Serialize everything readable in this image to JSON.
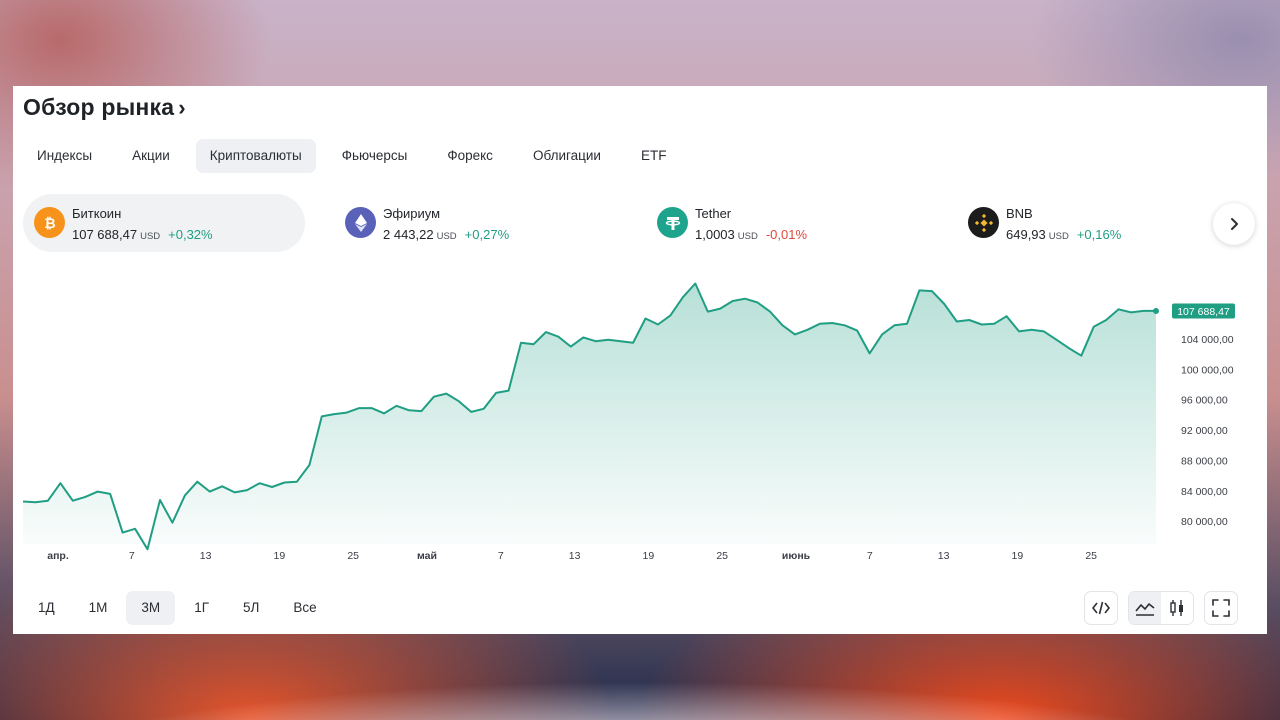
{
  "header": {
    "title": "Обзор рынка",
    "chevron": "›"
  },
  "tabs": [
    {
      "label": "Индексы",
      "active": false
    },
    {
      "label": "Акции",
      "active": false
    },
    {
      "label": "Криптовалюты",
      "active": true
    },
    {
      "label": "Фьючерсы",
      "active": false
    },
    {
      "label": "Форекс",
      "active": false
    },
    {
      "label": "Облигации",
      "active": false
    },
    {
      "label": "ETF",
      "active": false
    }
  ],
  "tickers": [
    {
      "name": "Биткоин",
      "price": "107 688,47",
      "currency": "USD",
      "change": "+0,32%",
      "direction": "up",
      "icon": "bitcoin-icon",
      "color": "#f7931a",
      "active": true
    },
    {
      "name": "Эфириум",
      "price": "2 443,22",
      "currency": "USD",
      "change": "+0,27%",
      "direction": "up",
      "icon": "ethereum-icon",
      "color": "#5a61b8",
      "active": false
    },
    {
      "name": "Tether",
      "price": "1,0003",
      "currency": "USD",
      "change": "-0,01%",
      "direction": "down",
      "icon": "tether-icon",
      "color": "#1ea48c",
      "active": false
    },
    {
      "name": "BNB",
      "price": "649,93",
      "currency": "USD",
      "change": "+0,16%",
      "direction": "up",
      "icon": "bnb-icon",
      "color": "#1c1c1c",
      "active": false
    }
  ],
  "periods": [
    {
      "label": "1Д",
      "active": false
    },
    {
      "label": "1М",
      "active": false
    },
    {
      "label": "3М",
      "active": true
    },
    {
      "label": "1Г",
      "active": false
    },
    {
      "label": "5Л",
      "active": false
    },
    {
      "label": "Все",
      "active": false
    }
  ],
  "toolbar": {
    "icons": [
      "embed-code-icon",
      "area-chart-icon",
      "candlestick-icon",
      "fullscreen-icon"
    ]
  },
  "colors": {
    "line": "#1f9e83",
    "up": "#1f9e83",
    "down": "#e0483e",
    "label_bg": "#1f9e83"
  },
  "chart_data": {
    "type": "area",
    "series_name": "Биткоин",
    "current_label": "107 688,47",
    "x_ticks": [
      "апр.",
      "7",
      "13",
      "19",
      "25",
      "май",
      "7",
      "13",
      "19",
      "25",
      "июнь",
      "7",
      "13",
      "19",
      "25"
    ],
    "y_ticks": [
      "104 000,00",
      "100 000,00",
      "96 000,00",
      "92 000,00",
      "88 000,00",
      "84 000,00",
      "80 000,00"
    ],
    "y_tick_values": [
      104000,
      100000,
      96000,
      92000,
      88000,
      84000,
      80000
    ],
    "ylim": [
      77000,
      111500
    ],
    "values": [
      82600,
      82500,
      82700,
      85000,
      82700,
      83200,
      83900,
      83600,
      78500,
      79000,
      76300,
      82800,
      79800,
      83400,
      85200,
      83900,
      84600,
      83800,
      84100,
      85000,
      84500,
      85100,
      85200,
      87400,
      93800,
      94100,
      94300,
      94900,
      94900,
      94200,
      95200,
      94600,
      94500,
      96400,
      96800,
      95800,
      94400,
      94800,
      96900,
      97200,
      103500,
      103300,
      104900,
      104300,
      103000,
      104200,
      103700,
      103900,
      103700,
      103500,
      106700,
      105900,
      107100,
      109500,
      111300,
      107600,
      108000,
      109000,
      109300,
      108800,
      107600,
      105800,
      104600,
      105200,
      106000,
      106100,
      105800,
      105100,
      102100,
      104600,
      105800,
      106000,
      110400,
      110300,
      108600,
      106300,
      106500,
      105900,
      106000,
      107000,
      105000,
      105200,
      105000,
      103900,
      102800,
      101800,
      105600,
      106500,
      107900,
      107500,
      107700,
      107688
    ]
  }
}
